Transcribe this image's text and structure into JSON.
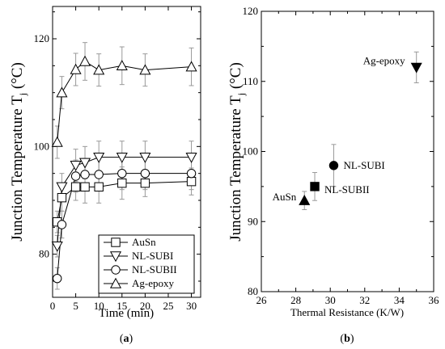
{
  "chart_data": [
    {
      "type": "line",
      "panel_label": "a",
      "xlabel": "Time (min)",
      "ylabel_main": "Junction Temperature T",
      "ylabel_sub": "j",
      "ylabel_unit": " (°C)",
      "xlim": [
        0,
        32
      ],
      "ylim": [
        72,
        126
      ],
      "xticks": [
        0,
        5,
        10,
        15,
        20,
        25,
        30
      ],
      "yticks": [
        80,
        100,
        120
      ],
      "legend_position": "bottom-right",
      "series": [
        {
          "name": "AuSn",
          "marker": "square",
          "x": [
            1,
            2,
            5,
            7,
            10,
            15,
            20,
            30
          ],
          "y": [
            86,
            90.5,
            92.5,
            92.5,
            92.5,
            93.2,
            93.2,
            93.5
          ],
          "err": [
            2,
            2.5,
            2.5,
            3,
            3,
            3,
            2.5,
            2.5
          ]
        },
        {
          "name": "NL-SUBI",
          "marker": "triangle-down",
          "x": [
            1,
            2,
            5,
            7,
            10,
            15,
            20,
            30
          ],
          "y": [
            81.5,
            92.5,
            96.5,
            97,
            98,
            98,
            98,
            98
          ],
          "err": [
            2,
            2.5,
            3,
            3,
            3,
            3,
            3,
            3
          ]
        },
        {
          "name": "NL-SUBII",
          "marker": "circle",
          "x": [
            1,
            2,
            5,
            7,
            10,
            15,
            20,
            30
          ],
          "y": [
            75.5,
            85.5,
            94.5,
            94.8,
            94.8,
            95,
            95,
            95
          ],
          "err": [
            2,
            2.5,
            3,
            3,
            3,
            3,
            3,
            3
          ]
        },
        {
          "name": "Ag-epoxy",
          "marker": "triangle-up",
          "x": [
            1,
            2,
            5,
            7,
            10,
            15,
            20,
            30
          ],
          "y": [
            100.8,
            110,
            114.3,
            115.8,
            114.2,
            115,
            114.2,
            114.8
          ],
          "err": [
            3,
            3,
            3,
            3.5,
            3,
            3.5,
            3,
            3.5
          ]
        }
      ]
    },
    {
      "type": "scatter",
      "panel_label": "b",
      "xlabel": "Thermal Resistance (K/W)",
      "ylabel_main": "Junction Temperature T",
      "ylabel_sub": "j",
      "ylabel_unit": " (°C)",
      "xlim": [
        26,
        36
      ],
      "ylim": [
        80,
        120
      ],
      "xticks": [
        26,
        28,
        30,
        32,
        34,
        36
      ],
      "yticks": [
        80,
        90,
        100,
        110,
        120
      ],
      "points": [
        {
          "label": "AuSn",
          "marker": "triangle-up-filled",
          "x": 28.5,
          "y": 93,
          "err": 1.3
        },
        {
          "label": "NL-SUBII",
          "marker": "square-filled",
          "x": 29.1,
          "y": 95,
          "err": 2
        },
        {
          "label": "NL-SUBI",
          "marker": "circle-filled",
          "x": 30.2,
          "y": 98,
          "err": 3
        },
        {
          "label": "Ag-epoxy",
          "marker": "triangle-down-filled",
          "x": 35,
          "y": 112,
          "err": 2.2
        }
      ]
    }
  ]
}
